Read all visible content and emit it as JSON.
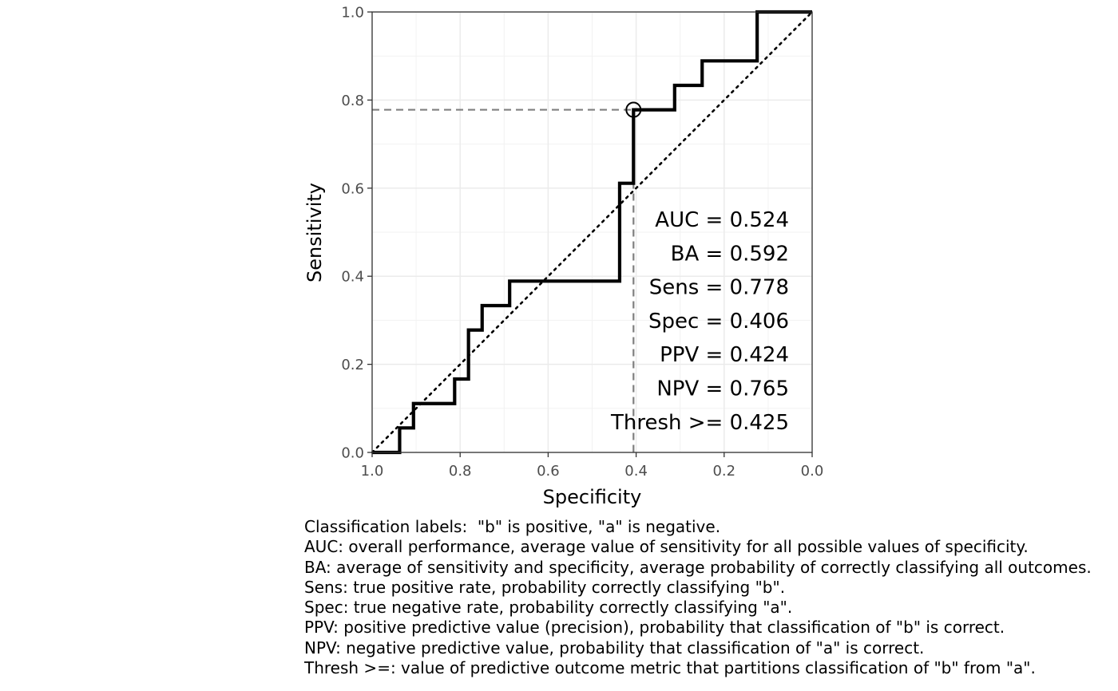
{
  "chart_data": {
    "type": "line",
    "xlabel": "Specificity",
    "ylabel": "Sensitivity",
    "x_reversed": true,
    "xlim": [
      1.0,
      0.0
    ],
    "ylim": [
      0.0,
      1.0
    ],
    "x_ticks": [
      "1.0",
      "0.8",
      "0.6",
      "0.4",
      "0.2",
      "0.0"
    ],
    "y_ticks": [
      "0.0",
      "0.2",
      "0.4",
      "0.6",
      "0.8",
      "1.0"
    ],
    "grid": true,
    "series": [
      {
        "style": "solid-step",
        "points": [
          [
            1.0,
            0.0
          ],
          [
            0.9375,
            0.0
          ],
          [
            0.9375,
            0.0556
          ],
          [
            0.906,
            0.0556
          ],
          [
            0.906,
            0.111
          ],
          [
            0.8125,
            0.111
          ],
          [
            0.8125,
            0.1667
          ],
          [
            0.781,
            0.1667
          ],
          [
            0.781,
            0.2778
          ],
          [
            0.75,
            0.2778
          ],
          [
            0.75,
            0.3333
          ],
          [
            0.6875,
            0.3333
          ],
          [
            0.6875,
            0.3889
          ],
          [
            0.4375,
            0.3889
          ],
          [
            0.4375,
            0.6111
          ],
          [
            0.406,
            0.6111
          ],
          [
            0.406,
            0.7778
          ],
          [
            0.3125,
            0.7778
          ],
          [
            0.3125,
            0.8333
          ],
          [
            0.25,
            0.8333
          ],
          [
            0.25,
            0.8889
          ],
          [
            0.125,
            0.8889
          ],
          [
            0.125,
            1.0
          ],
          [
            0.0,
            1.0
          ]
        ]
      },
      {
        "style": "dotted-diagonal",
        "points": [
          [
            1.0,
            0.0
          ],
          [
            0.0,
            1.0
          ]
        ]
      }
    ],
    "optimal_point": {
      "specificity": 0.406,
      "sensitivity": 0.778
    },
    "annotations": [
      "AUC = 0.524",
      "BA = 0.592",
      "Sens = 0.778",
      "Spec = 0.406",
      "PPV = 0.424",
      "NPV = 0.765",
      "Thresh >= 0.425"
    ]
  },
  "caption": [
    "Classification labels:  \"b\" is positive, \"a\" is negative.",
    "AUC: overall performance, average value of sensitivity for all possible values of specificity.",
    "BA: average of sensitivity and specificity, average probability of correctly classifying all outcomes.",
    "Sens: true positive rate, probability correctly classifying \"b\".",
    "Spec: true negative rate, probability correctly classifying \"a\".",
    "PPV: positive predictive value (precision), probability that classification of \"b\" is correct.",
    "NPV: negative predictive value, probability that classification of \"a\" is correct.",
    "Thresh >=: value of predictive outcome metric that partitions classification of \"b\" from \"a\"."
  ]
}
